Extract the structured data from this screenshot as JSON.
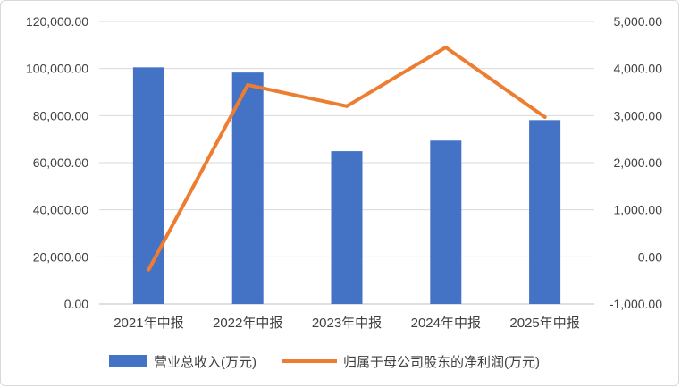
{
  "chart_data": {
    "type": "bar",
    "categories": [
      "2021年中报",
      "2022年中报",
      "2023年中报",
      "2024年中报",
      "2025年中报"
    ],
    "series": [
      {
        "name": "营业总收入(万元)",
        "type": "bar",
        "axis": "left",
        "color": "#4472C4",
        "values": [
          100500,
          98300,
          64900,
          69400,
          78100
        ]
      },
      {
        "name": "归属于母公司股东的净利润(万元)",
        "type": "line",
        "axis": "right",
        "color": "#ED7D31",
        "values": [
          -270,
          3650,
          3200,
          4450,
          2970
        ]
      }
    ],
    "y_left": {
      "min": 0,
      "max": 120000,
      "step": 20000,
      "tick_labels": [
        "0.00",
        "20,000.00",
        "40,000.00",
        "60,000.00",
        "80,000.00",
        "100,000.00",
        "120,000.00"
      ]
    },
    "y_right": {
      "min": -1000,
      "max": 5000,
      "step": 1000,
      "tick_labels": [
        "-1,000.00",
        "0.00",
        "1,000.00",
        "2,000.00",
        "3,000.00",
        "4,000.00",
        "5,000.00"
      ]
    },
    "grid": true,
    "legend_position": "bottom"
  }
}
